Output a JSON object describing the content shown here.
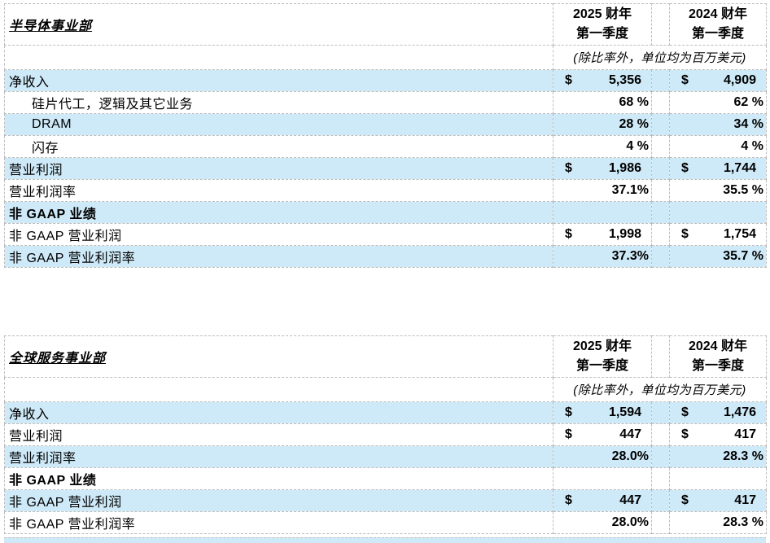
{
  "styles": {
    "row_shade_color": "#cee9f7",
    "border_color": "#bdbdbd",
    "text_color": "#000000"
  },
  "currency_symbol": "$",
  "tables": [
    {
      "title": "半导体事业部",
      "columns": [
        {
          "line1": "2025 财年",
          "line2": "第一季度"
        },
        {
          "line1": "2024 财年",
          "line2": "第一季度"
        }
      ],
      "note": "(除比率外，单位均为百万美元)",
      "rows": [
        {
          "label": "净收入",
          "indent": false,
          "bold": false,
          "type": "money",
          "values": [
            "5,356",
            "4,909"
          ],
          "shaded": true
        },
        {
          "label": "硅片代工，逻辑及其它业务",
          "indent": true,
          "bold": false,
          "type": "pct",
          "values": [
            "68 %",
            "62 %"
          ],
          "shaded": false
        },
        {
          "label": "DRAM",
          "indent": true,
          "bold": false,
          "type": "pct",
          "values": [
            "28 %",
            "34 %"
          ],
          "shaded": true
        },
        {
          "label": "闪存",
          "indent": true,
          "bold": false,
          "type": "pct",
          "values": [
            "4 %",
            "4 %"
          ],
          "shaded": false
        },
        {
          "label": "营业利润",
          "indent": false,
          "bold": false,
          "type": "money",
          "values": [
            "1,986",
            "1,744"
          ],
          "shaded": true
        },
        {
          "label": "营业利润率",
          "indent": false,
          "bold": false,
          "type": "pct",
          "values": [
            "37.1%",
            "35.5 %"
          ],
          "shaded": false
        },
        {
          "label": "非 GAAP 业绩",
          "indent": false,
          "bold": true,
          "type": "empty",
          "values": [
            "",
            ""
          ],
          "shaded": true
        },
        {
          "label": "非 GAAP 营业利润",
          "indent": false,
          "bold": false,
          "type": "money",
          "values": [
            "1,998",
            "1,754"
          ],
          "shaded": false
        },
        {
          "label": "非 GAAP 营业利润率",
          "indent": false,
          "bold": false,
          "type": "pct",
          "values": [
            "37.3%",
            "35.7 %"
          ],
          "shaded": true
        }
      ]
    },
    {
      "title": "全球服务事业部",
      "columns": [
        {
          "line1": "2025 财年",
          "line2": "第一季度"
        },
        {
          "line1": "2024 财年",
          "line2": "第一季度"
        }
      ],
      "note": "(除比率外，单位均为百万美元)",
      "rows": [
        {
          "label": "净收入",
          "indent": false,
          "bold": false,
          "type": "money",
          "values": [
            "1,594",
            "1,476"
          ],
          "shaded": true
        },
        {
          "label": "营业利润",
          "indent": false,
          "bold": false,
          "type": "money",
          "values": [
            "447",
            "417"
          ],
          "shaded": false
        },
        {
          "label": "营业利润率",
          "indent": false,
          "bold": false,
          "type": "pct",
          "values": [
            "28.0%",
            "28.3 %"
          ],
          "shaded": true
        },
        {
          "label": "非 GAAP 业绩",
          "indent": false,
          "bold": true,
          "type": "empty",
          "values": [
            "",
            ""
          ],
          "shaded": false
        },
        {
          "label": "非 GAAP 营业利润",
          "indent": false,
          "bold": false,
          "type": "money",
          "values": [
            "447",
            "417"
          ],
          "shaded": true
        },
        {
          "label": "非 GAAP 营业利润率",
          "indent": false,
          "bold": false,
          "type": "pct",
          "values": [
            "28.0%",
            "28.3 %"
          ],
          "shaded": false
        }
      ]
    }
  ]
}
